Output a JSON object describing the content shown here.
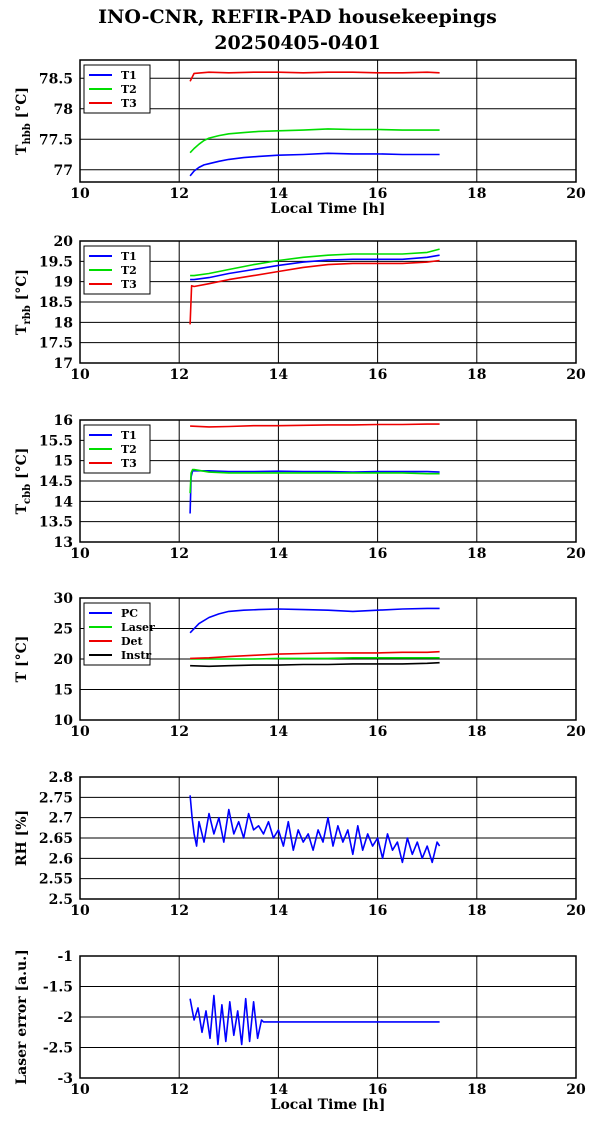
{
  "page": {
    "title_line1": "INO-CNR, REFIR-PAD housekeepings",
    "title_line2": "20250405-0401"
  },
  "chart_data": [
    {
      "id": "hbb",
      "type": "line",
      "ylabel": "T",
      "ylabel_sub": "hbb",
      "ylabel_unit": "[°C]",
      "xlabel": "Local Time [h]",
      "xlim": [
        10,
        20
      ],
      "ylim": [
        76.8,
        78.8
      ],
      "xticks": [
        10,
        12,
        14,
        16,
        18,
        20
      ],
      "xtick_labels": [
        "10",
        "12",
        "14",
        "16",
        "18",
        "20"
      ],
      "yticks": [
        77,
        77.5,
        78,
        78.5
      ],
      "ytick_labels": [
        "77",
        "77.5",
        "78",
        "78.5"
      ],
      "grid": true,
      "legend_position": "top-left",
      "series": [
        {
          "name": "T1",
          "color": "#0000ff",
          "x": [
            12.22,
            12.3,
            12.4,
            12.5,
            12.6,
            12.8,
            13.0,
            13.3,
            13.6,
            14.0,
            14.5,
            15.0,
            15.5,
            16.0,
            16.5,
            17.0,
            17.25
          ],
          "y": [
            76.9,
            76.98,
            77.04,
            77.08,
            77.1,
            77.14,
            77.17,
            77.2,
            77.22,
            77.24,
            77.25,
            77.27,
            77.26,
            77.26,
            77.25,
            77.25,
            77.25
          ]
        },
        {
          "name": "T2",
          "color": "#00dd00",
          "x": [
            12.22,
            12.3,
            12.4,
            12.5,
            12.6,
            12.8,
            13.0,
            13.3,
            13.6,
            14.0,
            14.5,
            15.0,
            15.5,
            16.0,
            16.5,
            17.0,
            17.25
          ],
          "y": [
            77.28,
            77.35,
            77.42,
            77.48,
            77.52,
            77.56,
            77.59,
            77.61,
            77.63,
            77.64,
            77.65,
            77.67,
            77.66,
            77.66,
            77.65,
            77.65,
            77.65
          ]
        },
        {
          "name": "T3",
          "color": "#ee0000",
          "x": [
            12.22,
            12.3,
            12.6,
            13.0,
            13.5,
            14.0,
            14.5,
            15.0,
            15.5,
            16.0,
            16.5,
            17.0,
            17.25
          ],
          "y": [
            78.45,
            78.58,
            78.6,
            78.59,
            78.6,
            78.6,
            78.59,
            78.6,
            78.6,
            78.59,
            78.59,
            78.6,
            78.59
          ]
        }
      ]
    },
    {
      "id": "rbb",
      "type": "line",
      "ylabel": "T",
      "ylabel_sub": "rbb",
      "ylabel_unit": "[°C]",
      "xlabel": "",
      "xlim": [
        10,
        20
      ],
      "ylim": [
        17,
        20
      ],
      "xticks": [
        10,
        12,
        14,
        16,
        18,
        20
      ],
      "xtick_labels": [
        "10",
        "12",
        "14",
        "16",
        "18",
        "20"
      ],
      "yticks": [
        17,
        17.5,
        18,
        18.5,
        19,
        19.5,
        20
      ],
      "ytick_labels": [
        "17",
        "17.5",
        "18",
        "18.5",
        "19",
        "19.5",
        "20"
      ],
      "grid": true,
      "legend_position": "top-left",
      "series": [
        {
          "name": "T1",
          "color": "#0000ff",
          "x": [
            12.22,
            12.3,
            12.6,
            13.0,
            13.5,
            14.0,
            14.5,
            15.0,
            15.5,
            16.0,
            16.5,
            17.0,
            17.25
          ],
          "y": [
            19.05,
            19.05,
            19.1,
            19.2,
            19.3,
            19.4,
            19.48,
            19.53,
            19.55,
            19.55,
            19.55,
            19.6,
            19.65
          ]
        },
        {
          "name": "T2",
          "color": "#00dd00",
          "x": [
            12.22,
            12.3,
            12.6,
            13.0,
            13.5,
            14.0,
            14.5,
            15.0,
            15.5,
            16.0,
            16.5,
            17.0,
            17.25
          ],
          "y": [
            19.15,
            19.15,
            19.2,
            19.3,
            19.42,
            19.52,
            19.6,
            19.65,
            19.68,
            19.68,
            19.68,
            19.72,
            19.8
          ]
        },
        {
          "name": "T3",
          "color": "#ee0000",
          "x": [
            12.22,
            12.25,
            12.3,
            12.6,
            13.0,
            13.5,
            14.0,
            14.5,
            15.0,
            15.5,
            16.0,
            16.5,
            17.0,
            17.25
          ],
          "y": [
            17.95,
            18.9,
            18.88,
            18.95,
            19.05,
            19.15,
            19.25,
            19.35,
            19.42,
            19.45,
            19.45,
            19.45,
            19.48,
            19.52
          ]
        }
      ]
    },
    {
      "id": "cbb",
      "type": "line",
      "ylabel": "T",
      "ylabel_sub": "cbb",
      "ylabel_unit": "[°C]",
      "xlabel": "",
      "xlim": [
        10,
        20
      ],
      "ylim": [
        13,
        16
      ],
      "xticks": [
        10,
        12,
        14,
        16,
        18,
        20
      ],
      "xtick_labels": [
        "10",
        "12",
        "14",
        "16",
        "18",
        "20"
      ],
      "yticks": [
        13,
        13.5,
        14,
        14.5,
        15,
        15.5,
        16
      ],
      "ytick_labels": [
        "13",
        "13.5",
        "14",
        "14.5",
        "15",
        "15.5",
        "16"
      ],
      "grid": true,
      "legend_position": "top-left",
      "series": [
        {
          "name": "T1",
          "color": "#0000ff",
          "x": [
            12.22,
            12.24,
            12.27,
            12.3,
            12.6,
            13.0,
            13.5,
            14.0,
            14.5,
            15.0,
            15.5,
            16.0,
            16.5,
            17.0,
            17.25
          ],
          "y": [
            13.7,
            14.6,
            14.75,
            14.75,
            14.75,
            14.73,
            14.73,
            14.74,
            14.73,
            14.73,
            14.72,
            14.73,
            14.73,
            14.73,
            14.72
          ]
        },
        {
          "name": "T2",
          "color": "#00dd00",
          "x": [
            12.22,
            12.24,
            12.27,
            12.3,
            12.6,
            13.0,
            13.5,
            14.0,
            14.5,
            15.0,
            15.5,
            16.0,
            16.5,
            17.0,
            17.25
          ],
          "y": [
            14.2,
            14.7,
            14.78,
            14.78,
            14.72,
            14.7,
            14.7,
            14.7,
            14.7,
            14.7,
            14.7,
            14.7,
            14.7,
            14.68,
            14.68
          ]
        },
        {
          "name": "T3",
          "color": "#ee0000",
          "x": [
            12.22,
            12.6,
            13.0,
            13.5,
            14.0,
            14.5,
            15.0,
            15.5,
            16.0,
            16.5,
            17.0,
            17.25
          ],
          "y": [
            15.85,
            15.83,
            15.84,
            15.86,
            15.86,
            15.87,
            15.88,
            15.88,
            15.89,
            15.89,
            15.9,
            15.9
          ]
        }
      ]
    },
    {
      "id": "temps",
      "type": "line",
      "ylabel": "T [°C]",
      "ylabel_sub": "",
      "ylabel_unit": "",
      "xlabel": "",
      "xlim": [
        10,
        20
      ],
      "ylim": [
        10,
        30
      ],
      "xticks": [
        10,
        12,
        14,
        16,
        18,
        20
      ],
      "xtick_labels": [
        "10",
        "12",
        "14",
        "16",
        "18",
        "20"
      ],
      "yticks": [
        10,
        15,
        20,
        25,
        30
      ],
      "ytick_labels": [
        "10",
        "15",
        "20",
        "25",
        "30"
      ],
      "grid": true,
      "legend_position": "top-left",
      "series": [
        {
          "name": "PC",
          "color": "#0000ff",
          "x": [
            12.22,
            12.4,
            12.6,
            12.8,
            13.0,
            13.3,
            13.6,
            14.0,
            14.5,
            15.0,
            15.5,
            16.0,
            16.5,
            17.0,
            17.25
          ],
          "y": [
            24.3,
            25.8,
            26.8,
            27.4,
            27.8,
            28.0,
            28.1,
            28.2,
            28.1,
            28.0,
            27.8,
            28.0,
            28.2,
            28.3,
            28.3
          ]
        },
        {
          "name": "Laser",
          "color": "#00dd00",
          "x": [
            12.22,
            12.6,
            13.0,
            13.5,
            14.0,
            14.5,
            15.0,
            15.5,
            16.0,
            16.5,
            17.0,
            17.25
          ],
          "y": [
            20.0,
            20.0,
            20.0,
            20.0,
            20.1,
            20.1,
            20.1,
            20.2,
            20.2,
            20.2,
            20.2,
            20.2
          ]
        },
        {
          "name": "Det",
          "color": "#ee0000",
          "x": [
            12.22,
            12.6,
            13.0,
            13.5,
            14.0,
            14.5,
            15.0,
            15.5,
            16.0,
            16.5,
            17.0,
            17.25
          ],
          "y": [
            20.1,
            20.2,
            20.4,
            20.6,
            20.8,
            20.9,
            21.0,
            21.0,
            21.0,
            21.1,
            21.1,
            21.2
          ]
        },
        {
          "name": "Instr",
          "color": "#000000",
          "x": [
            12.22,
            12.6,
            13.0,
            13.5,
            14.0,
            14.5,
            15.0,
            15.5,
            16.0,
            16.5,
            17.0,
            17.25
          ],
          "y": [
            18.9,
            18.8,
            18.9,
            19.0,
            19.0,
            19.1,
            19.1,
            19.2,
            19.2,
            19.2,
            19.3,
            19.4
          ]
        }
      ]
    },
    {
      "id": "rh",
      "type": "line",
      "ylabel": "RH [%]",
      "ylabel_sub": "",
      "ylabel_unit": "",
      "xlabel": "",
      "xlim": [
        10,
        20
      ],
      "ylim": [
        2.5,
        2.8
      ],
      "xticks": [
        10,
        12,
        14,
        16,
        18,
        20
      ],
      "xtick_labels": [
        "10",
        "12",
        "14",
        "16",
        "18",
        "20"
      ],
      "yticks": [
        2.5,
        2.55,
        2.6,
        2.65,
        2.7,
        2.75,
        2.8
      ],
      "ytick_labels": [
        "2.5",
        "2.55",
        "2.6",
        "2.65",
        "2.7",
        "2.75",
        "2.8"
      ],
      "grid": true,
      "legend_position": "",
      "series": [
        {
          "name": "",
          "color": "#0000ff",
          "x": [
            12.22,
            12.26,
            12.3,
            12.35,
            12.4,
            12.5,
            12.6,
            12.7,
            12.8,
            12.9,
            13.0,
            13.1,
            13.2,
            13.3,
            13.4,
            13.5,
            13.6,
            13.7,
            13.8,
            13.9,
            14.0,
            14.1,
            14.2,
            14.3,
            14.4,
            14.5,
            14.6,
            14.7,
            14.8,
            14.9,
            15.0,
            15.1,
            15.2,
            15.3,
            15.4,
            15.5,
            15.6,
            15.7,
            15.8,
            15.9,
            16.0,
            16.1,
            16.2,
            16.3,
            16.4,
            16.5,
            16.6,
            16.7,
            16.8,
            16.9,
            17.0,
            17.1,
            17.2,
            17.25
          ],
          "y": [
            2.755,
            2.7,
            2.66,
            2.63,
            2.69,
            2.64,
            2.71,
            2.66,
            2.7,
            2.64,
            2.72,
            2.66,
            2.69,
            2.65,
            2.71,
            2.67,
            2.68,
            2.66,
            2.69,
            2.65,
            2.67,
            2.63,
            2.69,
            2.62,
            2.67,
            2.64,
            2.66,
            2.62,
            2.67,
            2.64,
            2.7,
            2.63,
            2.68,
            2.64,
            2.67,
            2.61,
            2.68,
            2.62,
            2.66,
            2.63,
            2.65,
            2.6,
            2.66,
            2.62,
            2.64,
            2.59,
            2.65,
            2.61,
            2.64,
            2.6,
            2.63,
            2.59,
            2.64,
            2.63
          ]
        }
      ]
    },
    {
      "id": "laser",
      "type": "line",
      "ylabel": "Laser error [a.u.]",
      "ylabel_sub": "",
      "ylabel_unit": "",
      "xlabel": "Local Time [h]",
      "xlim": [
        10,
        20
      ],
      "ylim": [
        -3,
        -1
      ],
      "xticks": [
        10,
        12,
        14,
        16,
        18,
        20
      ],
      "xtick_labels": [
        "10",
        "12",
        "14",
        "16",
        "18",
        "20"
      ],
      "yticks": [
        -3,
        -2.5,
        -2,
        -1.5,
        -1
      ],
      "ytick_labels": [
        "-3",
        "-2.5",
        "-2",
        "-1.5",
        "-1"
      ],
      "grid": true,
      "legend_position": "",
      "series": [
        {
          "name": "",
          "color": "#0000ff",
          "x": [
            12.22,
            12.3,
            12.38,
            12.46,
            12.54,
            12.62,
            12.7,
            12.78,
            12.86,
            12.94,
            13.02,
            13.1,
            13.18,
            13.26,
            13.34,
            13.42,
            13.5,
            13.58,
            13.66,
            13.7,
            14.0,
            14.5,
            15.0,
            15.5,
            16.0,
            16.5,
            17.0,
            17.25
          ],
          "y": [
            -1.7,
            -2.05,
            -1.85,
            -2.25,
            -1.9,
            -2.35,
            -1.65,
            -2.45,
            -1.8,
            -2.4,
            -1.75,
            -2.3,
            -1.9,
            -2.45,
            -1.7,
            -2.4,
            -1.75,
            -2.35,
            -2.05,
            -2.08,
            -2.08,
            -2.08,
            -2.08,
            -2.08,
            -2.08,
            -2.08,
            -2.08,
            -2.08
          ]
        }
      ]
    }
  ]
}
